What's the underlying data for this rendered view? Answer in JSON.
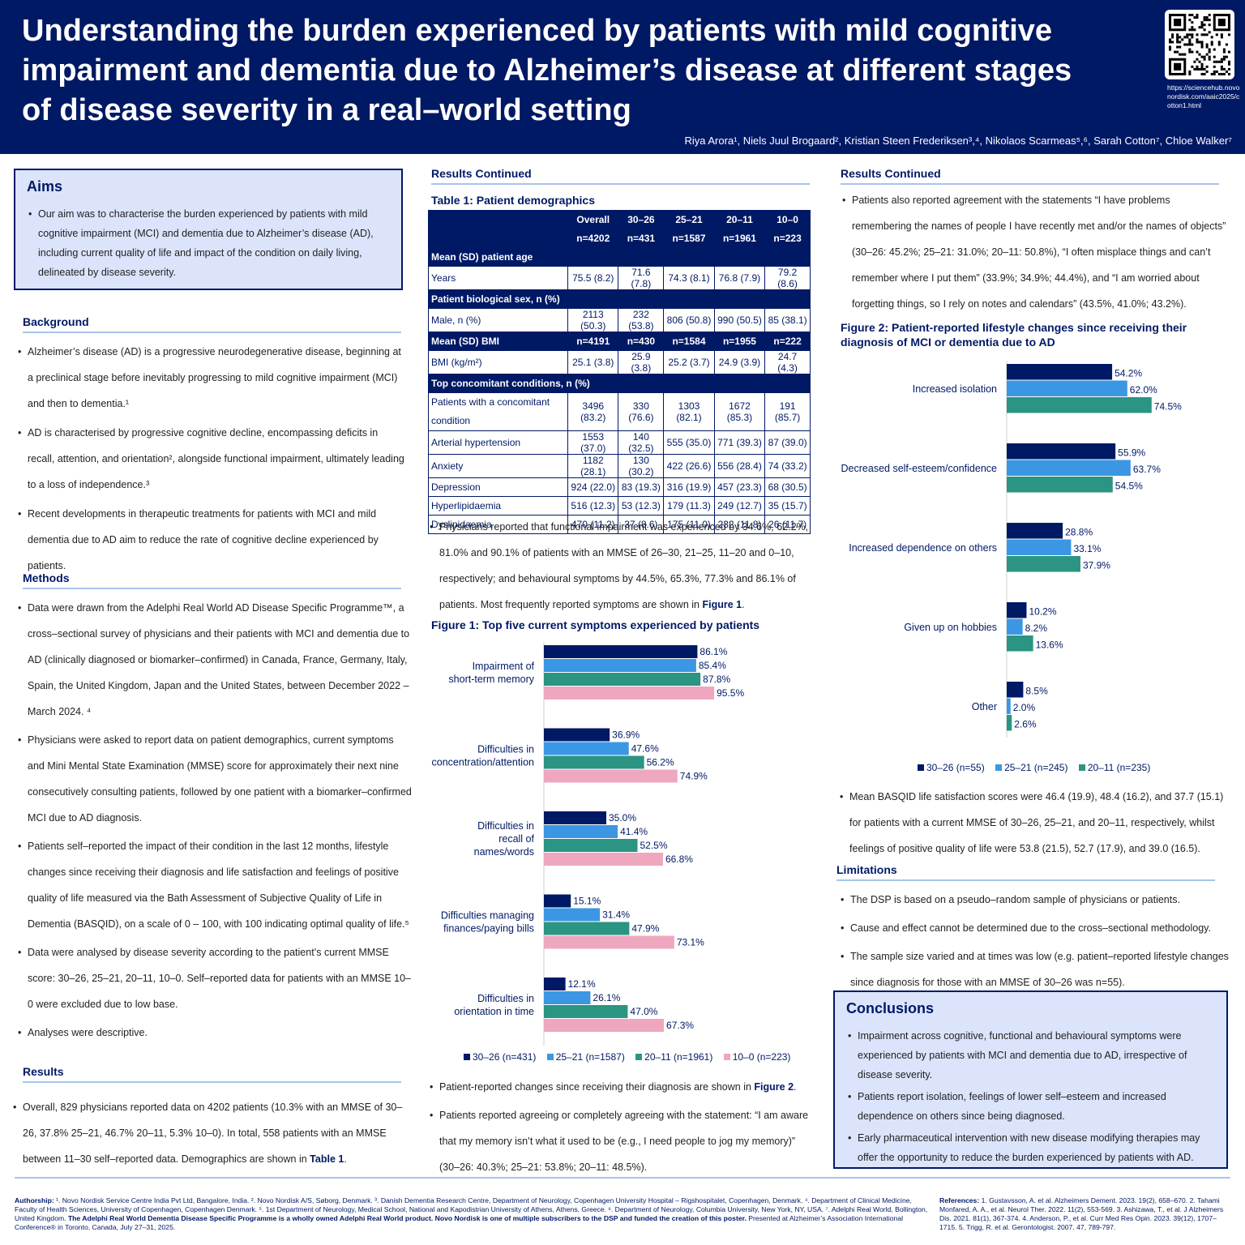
{
  "title": "Understanding the burden experienced by patients with mild cognitive impairment and dementia due to Alzheimer’s disease at different stages of disease severity in a real–world setting",
  "qr_url": "https://sciencehub.novonordisk.com/aaic2025/cotton1.html",
  "authors": "Riya Arora¹, Niels Juul Brogaard², Kristian Steen Frederiksen³,⁴, Nikolaos Scarmeas⁵,⁶, Sarah Cotton⁷, Chloe Walker⁷",
  "aims": {
    "heading": "Aims",
    "items": [
      "Our aim was to characterise the burden experienced by patients with mild cognitive impairment (MCI) and dementia due to Alzheimer’s disease (AD), including current quality of life and impact of the condition on daily living, delineated by disease severity."
    ]
  },
  "background": {
    "heading": "Background",
    "items": [
      "Alzheimer’s disease (AD) is a progressive neurodegenerative disease, beginning at a preclinical stage before inevitably progressing to mild cognitive impairment (MCI) and then to dementia.¹",
      "AD is characterised by progressive cognitive decline, encompassing deficits in recall, attention, and orientation², alongside functional impairment, ultimately leading to a loss of independence.³",
      "Recent developments in therapeutic treatments for patients with MCI and mild dementia due to AD aim to reduce the rate of cognitive decline experienced by patients."
    ]
  },
  "methods": {
    "heading": "Methods",
    "items": [
      "Data were drawn from the Adelphi Real World AD Disease Specific Programme™, a cross–sectional survey of physicians and their patients with MCI and dementia due to AD (clinically diagnosed or biomarker–confirmed) in Canada, France, Germany, Italy, Spain, the United Kingdom, Japan and the United States, between December 2022 – March 2024. ⁴",
      "Physicians were asked to report data on patient demographics, current symptoms and Mini Mental State Examination (MMSE) score for approximately their next nine consecutively consulting patients, followed by one patient with a biomarker–confirmed MCI due to AD diagnosis.",
      "Patients self–reported the impact of their condition in the last 12 months, lifestyle changes since receiving their diagnosis and life satisfaction and feelings of positive quality of life measured via the Bath Assessment of Subjective Quality of Life in Dementia (BASQID), on a scale of 0 – 100, with 100 indicating optimal quality of life.⁵",
      "Data were analysed by disease severity according to the patient’s current MMSE score: 30–26, 25–21, 20–11, 10–0. Self–reported data for patients with an MMSE 10–0 were excluded due to low base.",
      "Analyses were descriptive."
    ]
  },
  "results": {
    "heading": "Results",
    "text_a": "Overall, 829 physicians reported data on 4202 patients (10.3% with an MMSE of 30–26, 37.8% 25–21, 46.7% 20–11, 5.3% 10–0). In total, 558 patients with an MMSE between 11–30 self–reported data. Demographics are shown in ",
    "ref": "Table 1",
    "text_b": "."
  },
  "results_cont_heading": "Results Continued",
  "table1": {
    "title": "Table 1: Patient demographics",
    "header": [
      "",
      "Overall",
      "30–26",
      "25–21",
      "20–11",
      "10–0"
    ],
    "header_n": [
      "",
      "n=4202",
      "n=431",
      "n=1587",
      "n=1961",
      "n=223"
    ],
    "rows": [
      {
        "type": "sec",
        "label": "Mean (SD) patient age"
      },
      {
        "type": "row",
        "cells": [
          "Years",
          "75.5 (8.2)",
          "71.6 (7.8)",
          "74.3 (8.1)",
          "76.8 (7.9)",
          "79.2 (8.6)"
        ]
      },
      {
        "type": "sec",
        "label": "Patient biological sex, n (%)"
      },
      {
        "type": "row",
        "cells": [
          "  Male, n (%)",
          "2113 (50.3)",
          "232 (53.8)",
          "806 (50.8)",
          "990 (50.5)",
          "85 (38.1)"
        ]
      },
      {
        "type": "hd",
        "cells": [
          "Mean (SD) BMI",
          "n=4191",
          "n=430",
          "n=1584",
          "n=1955",
          "n=222"
        ]
      },
      {
        "type": "row",
        "cells": [
          "BMI (kg/m²)",
          "25.1 (3.8)",
          "25.9 (3.8)",
          "25.2 (3.7)",
          "24.9 (3.9)",
          "24.7 (4.3)"
        ]
      },
      {
        "type": "sec",
        "label": "Top concomitant conditions, n (%)"
      },
      {
        "type": "row",
        "tall": true,
        "cells": [
          "Patients with a concomitant condition",
          "3496 (83.2)",
          "330 (76.6)",
          "1303 (82.1)",
          "1672 (85.3)",
          "191 (85.7)"
        ]
      },
      {
        "type": "row",
        "cells": [
          "Arterial hypertension",
          "1553 (37.0)",
          "140 (32.5)",
          "555 (35.0)",
          "771 (39.3)",
          "87 (39.0)"
        ]
      },
      {
        "type": "row",
        "cells": [
          "Anxiety",
          "1182 (28.1)",
          "130 (30.2)",
          "422 (26.6)",
          "556 (28.4)",
          "74 (33.2)"
        ]
      },
      {
        "type": "row",
        "cells": [
          "Depression",
          "924 (22.0)",
          "83 (19.3)",
          "316 (19.9)",
          "457 (23.3)",
          "68 (30.5)"
        ]
      },
      {
        "type": "row",
        "cells": [
          "Hyperlipidaemia",
          "516 (12.3)",
          "53 (12.3)",
          "179 (11.3)",
          "249 (12.7)",
          "35 (15.7)"
        ]
      },
      {
        "type": "row",
        "cells": [
          "Dyslipidaemia",
          "470 (11.2)",
          "37 (8.6)",
          "175 (11.0)",
          "232 (11.8)",
          "26 (11.7)"
        ]
      }
    ]
  },
  "mid_text1_a": "Physicians reported that functional impairment was experienced by 34.6%, 62.2%, 81.0% and 90.1% of patients with an MMSE of 26–30, 21–25, 11–20 and 0–10, respectively; and behavioural symptoms by 44.5%, 65.3%, 77.3% and 86.1% of patients. Most frequently reported symptoms are shown in ",
  "mid_text1_ref": "Figure 1",
  "mid_text1_b": ".",
  "mid_text2_a": "Patient-reported changes since receiving their diagnosis are shown in ",
  "mid_text2_ref": "Figure 2",
  "mid_text2_b": ".",
  "mid_text3": "Patients reported agreeing or completely agreeing with the statement: “I am aware that my memory isn’t what it used to be (e.g., I need people to jog my memory)” (30–26: 40.3%; 25–21: 53.8%; 20–11: 48.5%).",
  "right_text1": "Patients also reported agreement with the statements “I have problems remembering the names of people I have recently met and/or the names of objects” (30–26: 45.2%; 25–21: 31.0%; 20–11: 50.8%), “I often misplace things and can’t remember where I put them” (33.9%; 34.9%; 44.4%), and “I am worried about forgetting things, so I rely on notes and calendars” (43.5%, 41.0%; 43.2%).",
  "right_text2": "Mean BASQID life satisfaction scores were 46.4 (19.9), 48.4 (16.2), and 37.7 (15.1) for patients with a current MMSE of 30–26, 25–21, and 20–11, respectively, whilst feelings of positive quality of life were 53.8 (21.5), 52.7 (17.9), and 39.0 (16.5).",
  "limitations": {
    "heading": "Limitations",
    "items": [
      "The DSP is based on a pseudo–random sample of physicians or patients.",
      "Cause and effect cannot be determined due to the cross–sectional methodology.",
      "The sample size varied and at times was low (e.g. patient–reported lifestyle changes since diagnosis for those with an MMSE of 30–26 was n=55)."
    ]
  },
  "conclusions": {
    "heading": "Conclusions",
    "items": [
      "Impairment across cognitive, functional and behavioural symptoms were experienced by patients with MCI and dementia due to AD, irrespective of disease severity.",
      "Patients report isolation, feelings of lower self–esteem and increased dependence on others since being diagnosed.",
      "Early pharmaceutical intervention with new disease modifying therapies may offer the opportunity to reduce the burden experienced by patients with AD."
    ]
  },
  "colors": {
    "navy": "#001965",
    "blue": "#3b97e3",
    "teal": "#2b9483",
    "pink": "#eea7bf"
  },
  "chart_data": [
    {
      "type": "bar",
      "orientation": "horizontal",
      "title": "Figure 1: Top five current symptoms experienced by patients",
      "categories": [
        "Impairment of\nshort-term memory",
        "Difficulties in\nconcentration/attention",
        "Difficulties in\nrecall of\nnames/words",
        "Difficulties managing\nfinances/paying bills",
        "Difficulties in\norientation in time"
      ],
      "series": [
        {
          "name": "30–26 (n=431)",
          "values": [
            86.1,
            36.9,
            35.0,
            15.1,
            12.1
          ]
        },
        {
          "name": "25–21 (n=1587)",
          "values": [
            85.4,
            47.6,
            41.4,
            31.4,
            26.1
          ]
        },
        {
          "name": "20–11 (n=1961)",
          "values": [
            87.8,
            56.2,
            52.5,
            47.9,
            47.0
          ]
        },
        {
          "name": "10–0 (n=223)",
          "values": [
            95.5,
            74.9,
            66.8,
            73.1,
            67.3
          ]
        }
      ],
      "unit": "%",
      "legend": "bottom"
    },
    {
      "type": "bar",
      "orientation": "horizontal",
      "title": "Figure 2: Patient-reported lifestyle changes since receiving their diagnosis of MCI or dementia due to AD",
      "categories": [
        "Increased isolation",
        "Decreased self-esteem/confidence",
        "Increased dependence on others",
        "Given up on hobbies",
        "Other"
      ],
      "series": [
        {
          "name": "30–26 (n=55)",
          "values": [
            54.2,
            55.9,
            28.8,
            10.2,
            8.5
          ]
        },
        {
          "name": "25–21 (n=245)",
          "values": [
            62.0,
            63.7,
            33.1,
            8.2,
            2.0
          ]
        },
        {
          "name": "20–11 (n=235)",
          "values": [
            74.5,
            54.5,
            37.9,
            13.6,
            2.6
          ]
        }
      ],
      "unit": "%",
      "legend": "bottom"
    }
  ],
  "footer": {
    "authorship_label": "Authorship:",
    "authorship": "¹. Novo Nordisk Service Centre India Pvt Ltd, Bangalore, India. ². Novo Nordisk A/S, Søborg, Denmark. ³. Danish Dementia Research Centre, Department of Neurology, Copenhagen University Hospital – Rigshospitalet, Copenhagen, Denmark. ⁴. Department of Clinical Medicine, Faculty of Health Sciences, University of Copenhagen, Copenhagen Denmark. ⁵. 1st Department of Neurology, Medical School, National and Kapodistrian University of Athens, Athens, Greece. ⁶. Department of Neurology, Columbia University, New York, NY, USA. ⁷. Adelphi Real World, Bollington, United Kingdom.",
    "authorship_bold": "The Adelphi Real World Dementia Disease Specific Programme is a wholly owned Adelphi Real World product. Novo Nordisk is one of multiple subscribers to the DSP and funded the creation of this poster.",
    "authorship_end": "Presented at Alzheimer’s Association International Conference® in Toronto, Canada, July 27–31, 2025.",
    "references_label": "References:",
    "references": "1. Gustavsson, A. et al. Alzheimers Dement. 2023. 19(2), 658–670. 2. Tahami Monfared, A. A., et al. Neurol Ther. 2022. 11(2), 553-569. 3. Ashizawa, T., et al. J Alzheimers Dis. 2021. 81(1), 367-374. 4. Anderson, P., et al. Curr Med Res Opin. 2023. 39(12), 1707–1715. 5. Trigg, R. et al. Gerontologist. 2007. 47, 789-797."
  }
}
